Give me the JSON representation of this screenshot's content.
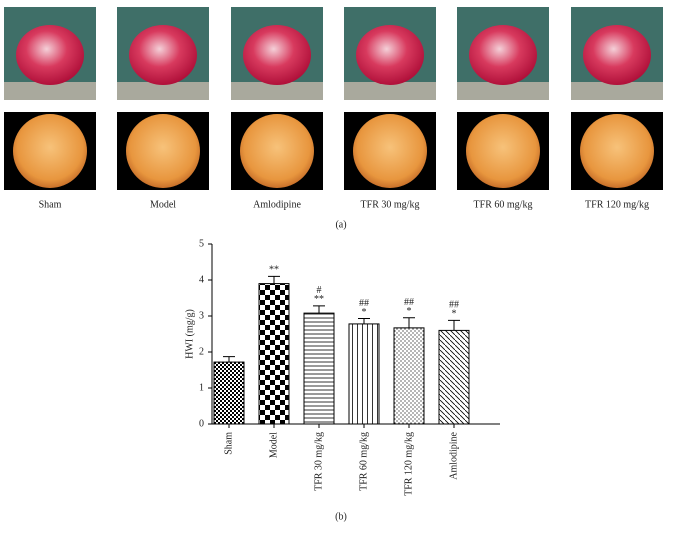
{
  "panel_a": {
    "labels": [
      "Sham",
      "Model",
      "Amlodipine",
      "TFR 30 mg/kg",
      "TFR 60 mg/kg",
      "TFR 120 mg/kg"
    ],
    "caption": "(a)"
  },
  "chart_data": {
    "type": "bar",
    "y_label": "HWI (mg/g)",
    "categories": [
      "Sham",
      "Model",
      "TFR 30 mg/kg",
      "TFR 60 mg/kg",
      "TFR 120 mg/kg",
      "Amlodipine"
    ],
    "values": [
      1.72,
      3.9,
      3.08,
      2.78,
      2.67,
      2.6
    ],
    "errors": [
      0.15,
      0.2,
      0.2,
      0.15,
      0.28,
      0.28
    ],
    "sig_star": [
      null,
      "**",
      "**",
      "*",
      "*",
      "*"
    ],
    "sig_hash": [
      null,
      null,
      "#",
      "##",
      "##",
      "##"
    ],
    "ylim": [
      0,
      5
    ],
    "yticks": [
      0,
      1,
      2,
      3,
      4,
      5
    ],
    "color": "#000000"
  },
  "caption_b": "(b)"
}
